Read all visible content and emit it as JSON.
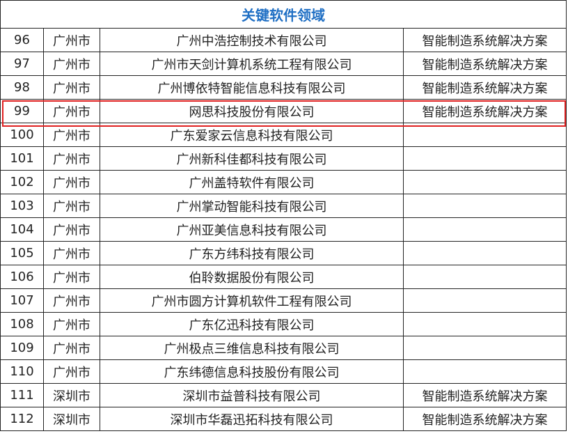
{
  "table": {
    "title": "关键软件领域",
    "rows": [
      [
        "96",
        "广州市",
        "广州中浩控制技术有限公司",
        "智能制造系统解决方案"
      ],
      [
        "97",
        "广州市",
        "广州市天剑计算机系统工程有限公司",
        "智能制造系统解决方案"
      ],
      [
        "98",
        "广州市",
        "广州博依特智能信息科技有限公司",
        "智能制造系统解决方案"
      ],
      [
        "99",
        "广州市",
        "网思科技股份有限公司",
        "智能制造系统解决方案"
      ],
      [
        "100",
        "广州市",
        "广东爱家云信息科技有限公司"
      ],
      [
        "101",
        "广州市",
        "广州新科佳都科技有限公司"
      ],
      [
        "102",
        "广州市",
        "广州盖特软件有限公司"
      ],
      [
        "103",
        "广州市",
        "广州掌动智能科技有限公司"
      ],
      [
        "104",
        "广州市",
        "广州亚美信息科技有限公司"
      ],
      [
        "105",
        "广州市",
        "广东方纬科技有限公司"
      ],
      [
        "106",
        "广州市",
        "伯聆数据股份有限公司"
      ],
      [
        "107",
        "广州市",
        "广州市圆方计算机软件工程有限公司"
      ],
      [
        "108",
        "广州市",
        "广东亿迅科技有限公司"
      ],
      [
        "109",
        "广州市",
        "广州极点三维信息科技有限公司"
      ],
      [
        "110",
        "广州市",
        "广东纬德信息科技股份有限公司"
      ],
      [
        "111",
        "深圳市",
        "深圳市益普科技有限公司",
        "智能制造系统解决方案"
      ],
      [
        "112",
        "深圳市",
        "深圳市华磊迅拓科技有限公司",
        "智能制造系统解决方案"
      ]
    ]
  }
}
